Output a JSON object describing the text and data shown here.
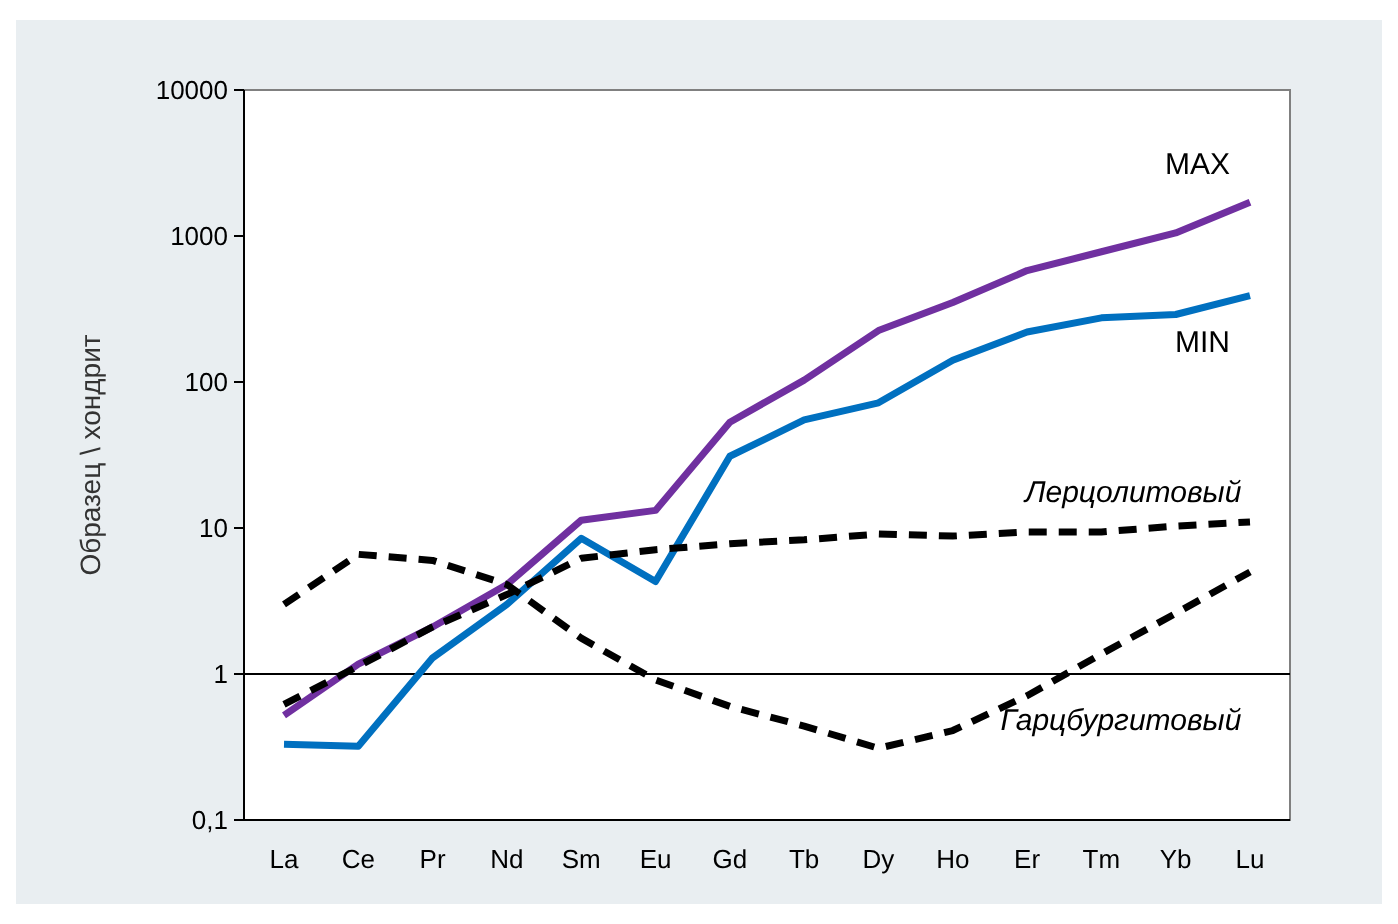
{
  "chart_data": {
    "type": "line",
    "ylabel": "Образец \\ хондрит",
    "log": true,
    "ylim": [
      0.1,
      10000
    ],
    "yticks": [
      {
        "value": 0.1,
        "label": "0,1"
      },
      1,
      10,
      100,
      1000,
      10000
    ],
    "categories": [
      "La",
      "Ce",
      "Pr",
      "Nd",
      "Sm",
      "Eu",
      "Gd",
      "Tb",
      "Dy",
      "Ho",
      "Er",
      "Tm",
      "Yb",
      "Lu"
    ],
    "ref_lines": [
      {
        "axis": "y",
        "value": 1,
        "color": "#000000"
      }
    ],
    "series": [
      {
        "name": "MAX",
        "color": "#7030a0",
        "line_style": "solid",
        "values": [
          0.52,
          1.17,
          2.1,
          4.1,
          11.3,
          13.2,
          53,
          103,
          225,
          350,
          580,
          780,
          1050,
          1700
        ]
      },
      {
        "name": "MIN",
        "color": "#0070c0",
        "line_style": "solid",
        "values": [
          0.33,
          0.32,
          1.29,
          3.0,
          8.5,
          4.3,
          31,
          55,
          72,
          141,
          220,
          275,
          290,
          390
        ]
      },
      {
        "name": "Лерцолитовый",
        "color": "#000000",
        "line_style": "dashed",
        "values": [
          0.62,
          1.13,
          2.1,
          3.5,
          6.2,
          7.1,
          7.8,
          8.3,
          9.1,
          8.8,
          9.4,
          9.4,
          10.3,
          11
        ]
      },
      {
        "name": "Гарцбургитовый",
        "color": "#000000",
        "line_style": "dashed",
        "values": [
          3.0,
          6.6,
          6.0,
          4.1,
          1.76,
          0.91,
          0.6,
          0.44,
          0.31,
          0.41,
          0.71,
          1.37,
          2.6,
          5.0
        ]
      }
    ]
  }
}
